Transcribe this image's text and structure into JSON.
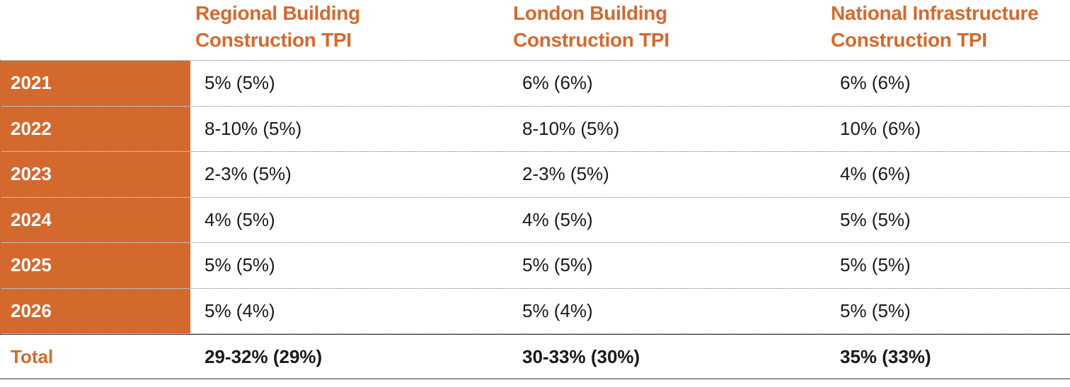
{
  "colors": {
    "accent": "#d4692e",
    "text": "#1a1a1a",
    "year_text": "#ffffff"
  },
  "headers": [
    {
      "line1": "Regional Building",
      "line2": "Construction TPI"
    },
    {
      "line1": "London Building",
      "line2": "Construction TPI"
    },
    {
      "line1": "National Infrastructure",
      "line2": "Construction TPI"
    }
  ],
  "rows": [
    {
      "year": "2021",
      "values": [
        "5% (5%)",
        "6% (6%)",
        "6% (6%)"
      ]
    },
    {
      "year": "2022",
      "values": [
        "8-10% (5%)",
        "8-10% (5%)",
        "10% (6%)"
      ]
    },
    {
      "year": "2023",
      "values": [
        "2-3% (5%)",
        "2-3% (5%)",
        "4% (6%)"
      ]
    },
    {
      "year": "2024",
      "values": [
        "4% (5%)",
        "4% (5%)",
        "5% (5%)"
      ]
    },
    {
      "year": "2025",
      "values": [
        "5% (5%)",
        "5% (5%)",
        "5% (5%)"
      ]
    },
    {
      "year": "2026",
      "values": [
        "5% (4%)",
        "5% (4%)",
        "5% (5%)"
      ]
    }
  ],
  "total": {
    "label": "Total",
    "values": [
      "29-32% (29%)",
      "30-33% (30%)",
      "35% (33%)"
    ]
  }
}
